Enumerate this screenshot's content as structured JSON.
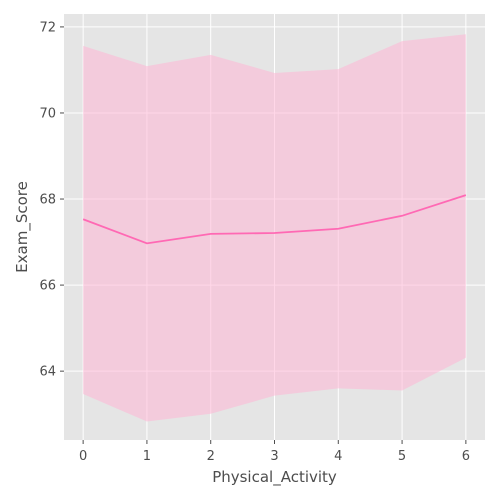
{
  "chart_data": {
    "type": "line",
    "xlabel": "Physical_Activity",
    "ylabel": "Exam_Score",
    "x": [
      0,
      1,
      2,
      3,
      4,
      5,
      6
    ],
    "series": [
      {
        "values": [
          67.53,
          66.97,
          67.19,
          67.21,
          67.31,
          67.61,
          68.09
        ],
        "ci_lower": [
          63.47,
          62.83,
          63.01,
          63.43,
          63.6,
          63.55,
          64.31
        ],
        "ci_upper": [
          71.56,
          71.09,
          71.35,
          70.93,
          71.02,
          71.67,
          71.83
        ],
        "color": "#ff69b4"
      }
    ],
    "xlim": [
      -0.3,
      6.3
    ],
    "ylim": [
      62.4,
      72.3
    ],
    "xticks": [
      "0",
      "1",
      "2",
      "3",
      "4",
      "5",
      "6"
    ],
    "yticks": [
      "64",
      "66",
      "68",
      "70",
      "72"
    ],
    "grid": true,
    "background": "#e5e5e5",
    "band_color": "#ffb6d5"
  }
}
